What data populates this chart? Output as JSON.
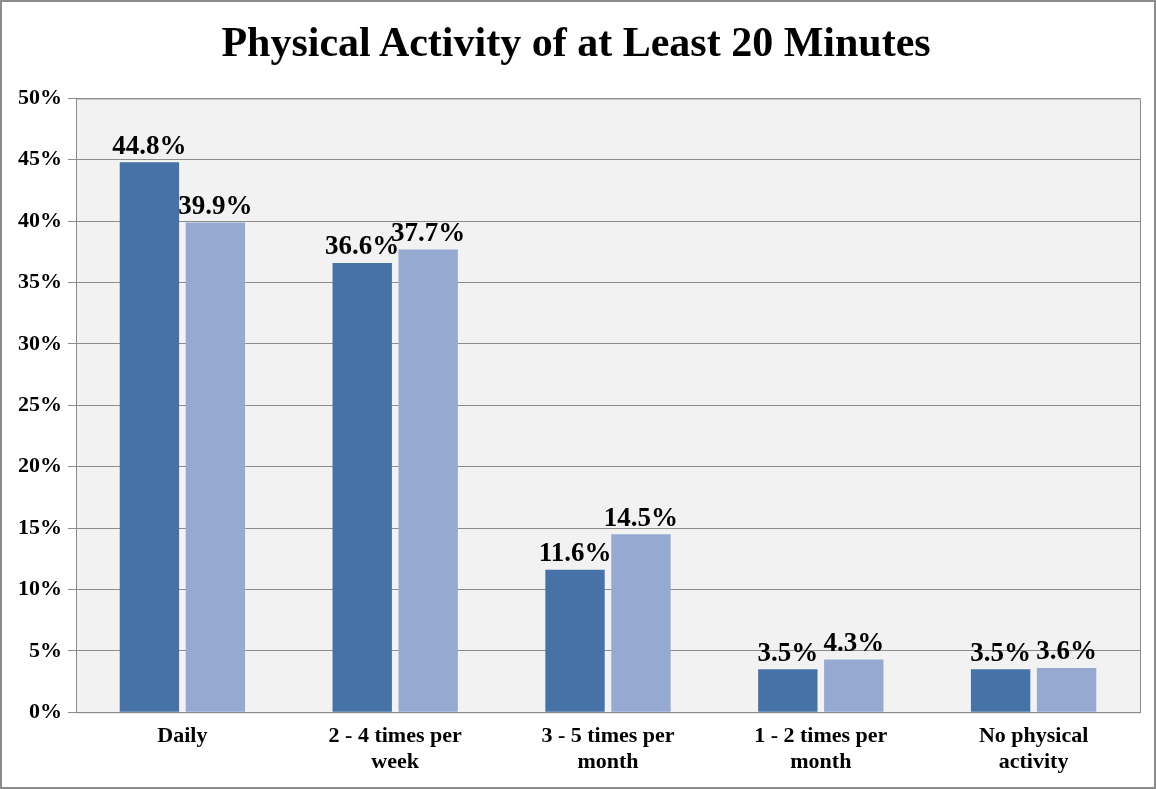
{
  "chart_data": {
    "type": "bar",
    "title": "Physical Activity of at Least 20 Minutes",
    "categories": [
      "Daily",
      "2 - 4 times per week",
      "3 - 5 times per month",
      "1 - 2 times per month",
      "No physical activity"
    ],
    "series": [
      {
        "color": "#4672a8",
        "values": [
          44.8,
          36.6,
          11.6,
          3.5,
          3.5
        ],
        "value_labels": [
          "44.8%",
          "36.6%",
          "11.6%",
          "3.5%",
          "3.5%"
        ]
      },
      {
        "color": "#95a9d1",
        "values": [
          39.9,
          37.7,
          14.5,
          4.3,
          3.6
        ],
        "value_labels": [
          "39.9%",
          "37.7%",
          "14.5%",
          "4.3%",
          "3.6%"
        ]
      }
    ],
    "ylim": [
      0,
      50
    ],
    "yticks": [
      {
        "value": 0,
        "label": "0%"
      },
      {
        "value": 5,
        "label": "5%"
      },
      {
        "value": 10,
        "label": "10%"
      },
      {
        "value": 15,
        "label": "15%"
      },
      {
        "value": 20,
        "label": "20%"
      },
      {
        "value": 25,
        "label": "25%"
      },
      {
        "value": 30,
        "label": "30%"
      },
      {
        "value": 35,
        "label": "35%"
      },
      {
        "value": 40,
        "label": "40%"
      },
      {
        "value": 45,
        "label": "45%"
      },
      {
        "value": 50,
        "label": "50%"
      }
    ],
    "grid": "y",
    "legend": false
  }
}
